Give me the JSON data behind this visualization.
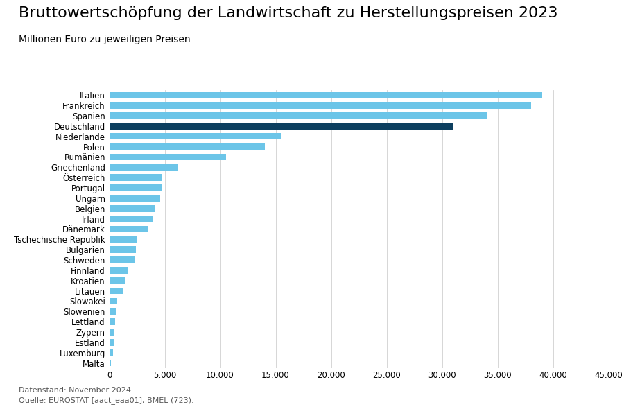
{
  "title": "Bruttowertschöpfung der Landwirtschaft zu Herstellungspreisen 2023",
  "subtitle": "Millionen Euro zu jeweiligen Preisen",
  "footer_line1": "Datenstand: November 2024",
  "footer_line2": "Quelle: EUROSTAT [aact_eaa01], BMEL (723).",
  "categories": [
    "Italien",
    "Frankreich",
    "Spanien",
    "Deutschland",
    "Niederlande",
    "Polen",
    "Rumänien",
    "Griechenland",
    "Österreich",
    "Portugal",
    "Ungarn",
    "Belgien",
    "Irland",
    "Dänemark",
    "Tschechische Republik",
    "Bulgarien",
    "Schweden",
    "Finnland",
    "Kroatien",
    "Litauen",
    "Slowakei",
    "Slowenien",
    "Lettland",
    "Zypern",
    "Estland",
    "Luxemburg",
    "Malta"
  ],
  "values": [
    39000,
    38000,
    34000,
    31000,
    15500,
    14000,
    10500,
    6200,
    4800,
    4700,
    4600,
    4100,
    3900,
    3500,
    2500,
    2400,
    2300,
    1700,
    1400,
    1200,
    700,
    650,
    500,
    450,
    380,
    330,
    150
  ],
  "colors": [
    "#6cc5e8",
    "#6cc5e8",
    "#6cc5e8",
    "#0d3f5f",
    "#6cc5e8",
    "#6cc5e8",
    "#6cc5e8",
    "#6cc5e8",
    "#6cc5e8",
    "#6cc5e8",
    "#6cc5e8",
    "#6cc5e8",
    "#6cc5e8",
    "#6cc5e8",
    "#6cc5e8",
    "#6cc5e8",
    "#6cc5e8",
    "#6cc5e8",
    "#6cc5e8",
    "#6cc5e8",
    "#6cc5e8",
    "#6cc5e8",
    "#6cc5e8",
    "#6cc5e8",
    "#6cc5e8",
    "#6cc5e8",
    "#6cc5e8"
  ],
  "xlim": [
    0,
    45000
  ],
  "xticks": [
    0,
    5000,
    10000,
    15000,
    20000,
    25000,
    30000,
    35000,
    40000,
    45000
  ],
  "xtick_labels": [
    "0",
    "5.000",
    "10.000",
    "15.000",
    "20.000",
    "25.000",
    "30.000",
    "35.000",
    "40.000",
    "45.000"
  ],
  "background_color": "#ffffff",
  "title_fontsize": 16,
  "subtitle_fontsize": 10,
  "tick_fontsize": 8.5,
  "footer_fontsize": 8,
  "bar_height": 0.65
}
